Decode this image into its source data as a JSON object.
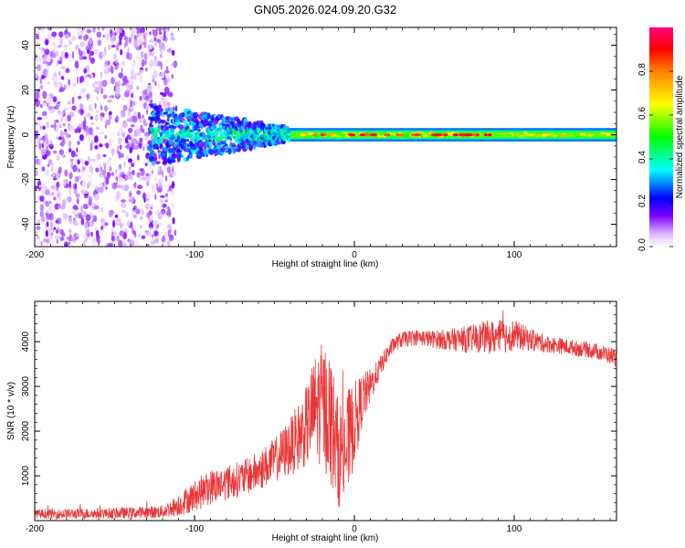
{
  "title": "GN05.2026.024.09.20.G32",
  "chart_data": [
    {
      "type": "heatmap",
      "name": "spectrogram",
      "xlabel": "Height of straight line (km)",
      "ylabel": "Frequency (Hz)",
      "xlim": [
        -200,
        164
      ],
      "ylim": [
        -50,
        48
      ],
      "xticks": [
        -200,
        -100,
        0,
        100
      ],
      "yticks": [
        -40,
        -20,
        0,
        20,
        40
      ],
      "colorbar": {
        "label": "Normalized spectral amplitude",
        "range": [
          0,
          1
        ],
        "ticks": [
          "0.0",
          "0.2",
          "0.4",
          "0.6",
          "0.8"
        ],
        "tick_values": [
          0.0,
          0.2,
          0.4,
          0.6,
          0.8
        ],
        "colors": [
          "#ffffff",
          "#b060ff",
          "#4000ff",
          "#0000ff",
          "#00ffff",
          "#00ff00",
          "#ffff00",
          "#ff8000",
          "#ff0000",
          "#ff0080"
        ]
      },
      "regions": [
        {
          "x_range": [
            -200,
            -112
          ],
          "freq_range": [
            -50,
            48
          ],
          "amplitude": 0.12,
          "description": "scattered noise"
        },
        {
          "x_range": [
            -128,
            -40
          ],
          "freq_range": [
            -12,
            12
          ],
          "amplitude": 0.2,
          "description": "broadening signal"
        },
        {
          "x_range": [
            -40,
            164
          ],
          "freq_range": [
            -3,
            3
          ],
          "amplitude": 0.55,
          "description": "narrow carrier"
        },
        {
          "x_range": [
            -25,
            90
          ],
          "freq_range": [
            -0.5,
            0.5
          ],
          "amplitude": 0.95,
          "description": "peak carrier"
        }
      ]
    },
    {
      "type": "line",
      "name": "snr",
      "xlabel": "Height of straight line (km)",
      "ylabel": "SNR (10 * v/v)",
      "xlim": [
        -200,
        164
      ],
      "ylim": [
        0,
        4900
      ],
      "xticks": [
        -200,
        -100,
        0,
        100
      ],
      "yticks": [
        1000,
        2000,
        3000,
        4000
      ],
      "series": [
        {
          "name": "SNR",
          "color": "#e8383a",
          "x": [
            -200,
            -180,
            -160,
            -140,
            -120,
            -110,
            -100,
            -90,
            -80,
            -70,
            -60,
            -50,
            -40,
            -30,
            -25,
            -20,
            -15,
            -10,
            -5,
            0,
            5,
            10,
            15,
            20,
            25,
            30,
            40,
            50,
            60,
            70,
            80,
            90,
            100,
            110,
            120,
            130,
            140,
            150,
            164
          ],
          "y": [
            150,
            150,
            160,
            170,
            200,
            350,
            550,
            750,
            850,
            950,
            1100,
            1350,
            1650,
            2100,
            2500,
            2600,
            2300,
            1500,
            1600,
            2200,
            2700,
            3000,
            3350,
            3700,
            3950,
            4050,
            4100,
            4050,
            4050,
            4050,
            4100,
            4100,
            4150,
            4050,
            3950,
            3900,
            3850,
            3800,
            3650
          ],
          "noise": [
            100,
            120,
            120,
            130,
            150,
            250,
            350,
            400,
            400,
            400,
            450,
            500,
            650,
            900,
            1200,
            1400,
            1500,
            1200,
            1300,
            900,
            600,
            400,
            250,
            200,
            180,
            180,
            180,
            200,
            250,
            300,
            350,
            400,
            350,
            250,
            200,
            180,
            180,
            180,
            200
          ]
        }
      ]
    }
  ]
}
